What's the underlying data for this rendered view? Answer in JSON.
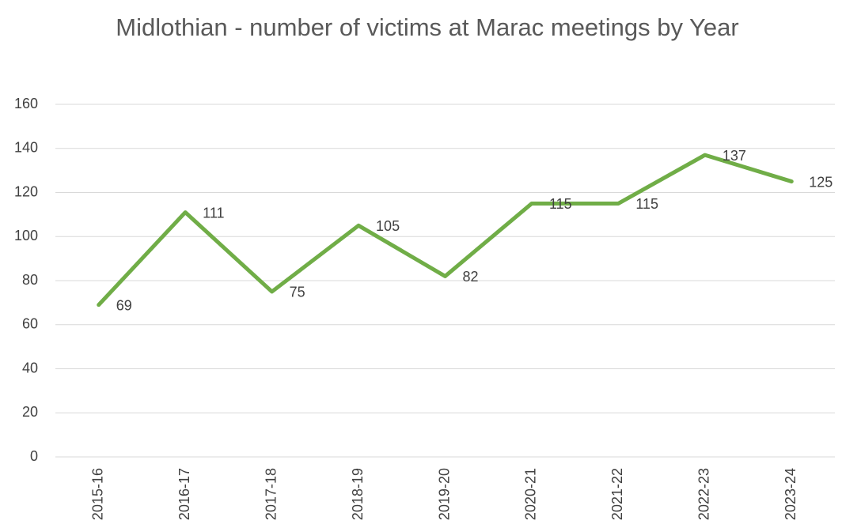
{
  "chart_data": {
    "type": "line",
    "title": "Midlothian - number of victims at Marac meetings by Year",
    "categories": [
      "2015-16",
      "2016-17",
      "2017-18",
      "2018-19",
      "2019-20",
      "2020-21",
      "2021-22",
      "2022-23",
      "2023-24"
    ],
    "values": [
      69,
      111,
      75,
      105,
      82,
      115,
      115,
      137,
      125
    ],
    "color": "#70ad47",
    "ylim": [
      0,
      160
    ],
    "yticks": [
      0,
      20,
      40,
      60,
      80,
      100,
      120,
      140,
      160
    ],
    "grid": true
  }
}
